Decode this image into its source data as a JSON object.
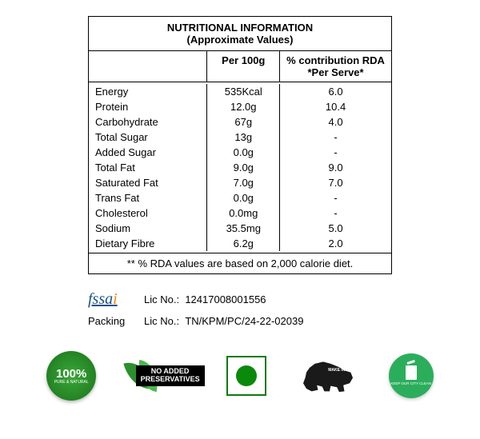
{
  "table": {
    "title_line1": "NUTRITIONAL INFORMATION",
    "title_line2": "(Approximate Values)",
    "header": {
      "col1": "",
      "col2": "Per 100g",
      "col3_line1": "% contribution RDA",
      "col3_line2": "*Per Serve*"
    },
    "rows": [
      {
        "name": "Energy",
        "per100g": "535Kcal",
        "rda": "6.0"
      },
      {
        "name": "Protein",
        "per100g": "12.0g",
        "rda": "10.4"
      },
      {
        "name": "Carbohydrate",
        "per100g": "67g",
        "rda": "4.0"
      },
      {
        "name": "Total Sugar",
        "per100g": "13g",
        "rda": "-"
      },
      {
        "name": "Added Sugar",
        "per100g": "0.0g",
        "rda": "-"
      },
      {
        "name": "Total Fat",
        "per100g": "9.0g",
        "rda": "9.0"
      },
      {
        "name": "Saturated Fat",
        "per100g": "7.0g",
        "rda": "7.0"
      },
      {
        "name": "Trans Fat",
        "per100g": "0.0g",
        "rda": "-"
      },
      {
        "name": "Cholesterol",
        "per100g": "0.0mg",
        "rda": "-"
      },
      {
        "name": "Sodium",
        "per100g": "35.5mg",
        "rda": "5.0"
      },
      {
        "name": "Dietary Fibre",
        "per100g": "6.2g",
        "rda": "2.0"
      }
    ],
    "footer": "** % RDA values are based on 2,000 calorie diet."
  },
  "licenses": {
    "fssai_label": "fssai",
    "fssai_lic_label": "Lic No.:",
    "fssai_lic_no": "12417008001556",
    "packing_label": "Packing",
    "packing_lic_label": "Lic No.:",
    "packing_lic_no": "TN/KPM/PC/24-22-02039"
  },
  "badges": {
    "natural_big": "100%",
    "natural_sm": "PURE &\nNATURAL",
    "noadd_line1": "NO ADDED",
    "noadd_line2": "PRESERVATIVES",
    "mii_line": "MAKE IN\nINDIA",
    "clean_line": "KEEP OUR\nCITY CLEAN"
  }
}
